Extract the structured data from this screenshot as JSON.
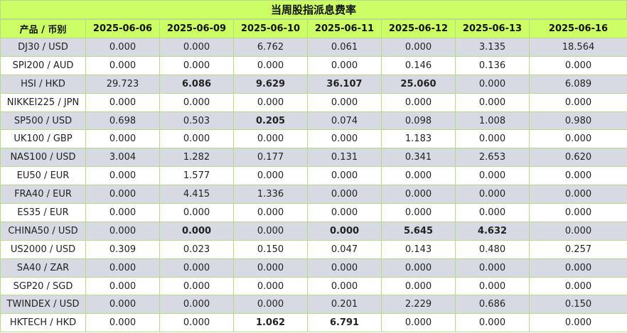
{
  "title": "当周股指派息费率",
  "header": {
    "product": "产品 / 币别",
    "dates": [
      "2025-06-06",
      "2025-06-09",
      "2025-06-10",
      "2025-06-11",
      "2025-06-12",
      "2025-06-13",
      "2025-06-16"
    ]
  },
  "rows": [
    {
      "product": "DJ30 / USD",
      "values": [
        "0.000",
        "0.000",
        "6.762",
        "0.061",
        "0.000",
        "3.135",
        "18.564"
      ],
      "bold": []
    },
    {
      "product": "SPI200 / AUD",
      "values": [
        "0.000",
        "0.000",
        "0.000",
        "0.000",
        "0.146",
        "0.136",
        "0.000"
      ],
      "bold": []
    },
    {
      "product": "HSI / HKD",
      "values": [
        "29.723",
        "6.086",
        "9.629",
        "36.107",
        "25.060",
        "0.000",
        "6.089"
      ],
      "bold": [
        1,
        2,
        3,
        4
      ]
    },
    {
      "product": "NIKKEI225 / JPN",
      "values": [
        "0.000",
        "0.000",
        "0.000",
        "0.000",
        "0.000",
        "0.000",
        "0.000"
      ],
      "bold": []
    },
    {
      "product": "SP500 / USD",
      "values": [
        "0.698",
        "0.503",
        "0.205",
        "0.074",
        "0.098",
        "1.008",
        "0.980"
      ],
      "bold": [
        2
      ]
    },
    {
      "product": "UK100 / GBP",
      "values": [
        "0.000",
        "0.000",
        "0.000",
        "0.000",
        "1.183",
        "0.000",
        "0.000"
      ],
      "bold": []
    },
    {
      "product": "NAS100 / USD",
      "values": [
        "3.004",
        "1.282",
        "0.177",
        "0.131",
        "0.341",
        "2.653",
        "0.620"
      ],
      "bold": []
    },
    {
      "product": "EU50 / EUR",
      "values": [
        "0.000",
        "1.577",
        "0.000",
        "0.000",
        "0.000",
        "0.000",
        "0.000"
      ],
      "bold": []
    },
    {
      "product": "FRA40 / EUR",
      "values": [
        "0.000",
        "4.415",
        "1.336",
        "0.000",
        "0.000",
        "0.000",
        "0.000"
      ],
      "bold": []
    },
    {
      "product": "ES35 / EUR",
      "values": [
        "0.000",
        "0.000",
        "0.000",
        "0.000",
        "0.000",
        "0.000",
        "0.000"
      ],
      "bold": []
    },
    {
      "product": "CHINA50 / USD",
      "values": [
        "0.000",
        "0.000",
        "0.000",
        "0.000",
        "5.645",
        "4.632",
        "0.000"
      ],
      "bold": [
        1,
        3,
        4,
        5
      ]
    },
    {
      "product": "US2000 / USD",
      "values": [
        "0.309",
        "0.023",
        "0.150",
        "0.047",
        "0.143",
        "0.480",
        "0.257"
      ],
      "bold": []
    },
    {
      "product": "SA40 / ZAR",
      "values": [
        "0.000",
        "0.000",
        "0.000",
        "0.000",
        "0.000",
        "0.000",
        "0.000"
      ],
      "bold": []
    },
    {
      "product": "SGP20 / SGD",
      "values": [
        "0.000",
        "0.000",
        "0.000",
        "0.000",
        "0.000",
        "0.000",
        "0.000"
      ],
      "bold": []
    },
    {
      "product": "TWINDEX / USD",
      "values": [
        "0.000",
        "0.000",
        "0.000",
        "0.201",
        "2.229",
        "0.686",
        "0.150"
      ],
      "bold": []
    },
    {
      "product": "HKTECH / HKD",
      "values": [
        "0.000",
        "0.000",
        "1.062",
        "6.791",
        "0.000",
        "0.000",
        "0.000"
      ],
      "bold": [
        2,
        3
      ]
    }
  ],
  "colors": {
    "header_bg": "#ccff66",
    "stripe_bg": "#d7dae3",
    "border": "#b9d98a"
  }
}
